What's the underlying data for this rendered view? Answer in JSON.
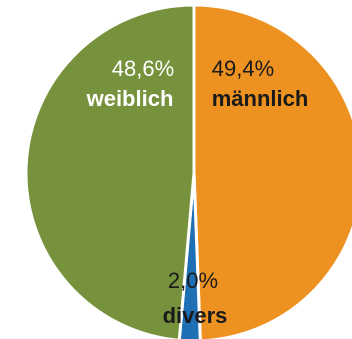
{
  "chart_data": {
    "type": "pie",
    "title": "",
    "slices": [
      {
        "label": "männlich",
        "value": 49.4,
        "value_label": "49,4%",
        "color": "#ED9121",
        "label_color": "#1a1a1a"
      },
      {
        "label": "divers",
        "value": 2.0,
        "value_label": "2,0%",
        "color": "#1F6FB5",
        "label_color": "#1a1a1a"
      },
      {
        "label": "weiblich",
        "value": 48.6,
        "value_label": "48,6%",
        "color": "#77923C",
        "label_color": "#ffffff"
      }
    ],
    "start_angle_deg": 0,
    "direction": "clockwise"
  }
}
